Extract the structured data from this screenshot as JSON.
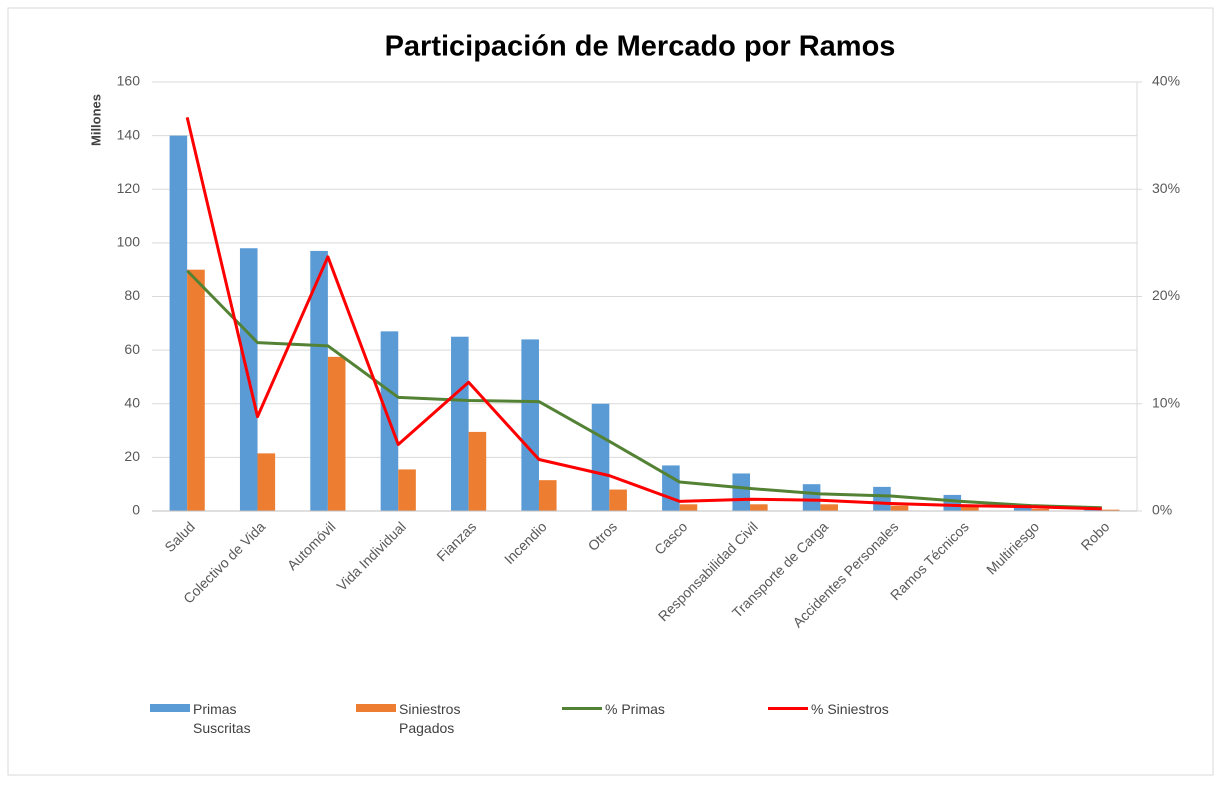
{
  "chart_data": {
    "type": "bar_line",
    "title": "Participación de Mercado por Ramos",
    "y_label": "Millones",
    "categories": [
      "Salud",
      "Colectivo de Vida",
      "Automóvil",
      "Vida Individual",
      "Fianzas",
      "Incendio",
      "Otros",
      "Casco",
      "Responsabilidad Civil",
      "Transporte de Carga",
      "Accidentes Personales",
      "Ramos Técnicos",
      "Multiriesgo",
      "Robo"
    ],
    "series": [
      {
        "name": "Primas Suscritas",
        "type": "bar",
        "color": "#5b9bd5",
        "values": [
          140,
          98,
          97,
          67,
          65,
          64,
          40,
          17,
          14,
          10,
          9,
          6,
          2,
          0.5
        ]
      },
      {
        "name": "Siniestros Pagados",
        "type": "bar",
        "color": "#ed7d31",
        "values": [
          90,
          21.5,
          57.5,
          15.5,
          29.5,
          11.5,
          8,
          2.5,
          2.5,
          2.5,
          2,
          2,
          0.8,
          0.5
        ]
      },
      {
        "name": "% Primas",
        "type": "line",
        "axis": "y2",
        "color": "#548235",
        "values": [
          22.4,
          15.7,
          15.4,
          10.6,
          10.3,
          10.2,
          6.5,
          2.7,
          2.1,
          1.6,
          1.4,
          0.9,
          0.5,
          0.3
        ]
      },
      {
        "name": "% Siniestros",
        "type": "line",
        "axis": "y2",
        "color": "#ff0000",
        "values": [
          36.7,
          8.8,
          23.7,
          6.2,
          12.0,
          4.8,
          3.3,
          0.9,
          1.1,
          1.0,
          0.7,
          0.5,
          0.4,
          0.2
        ]
      }
    ],
    "ylim": [
      0,
      160
    ],
    "yticks": [
      0,
      20,
      40,
      60,
      80,
      100,
      120,
      140,
      160
    ],
    "y2lim": [
      0,
      40
    ],
    "y2ticks": [
      {
        "value": 0,
        "label": "0%"
      },
      {
        "value": 10,
        "label": "10%"
      },
      {
        "value": 20,
        "label": "20%"
      },
      {
        "value": 30,
        "label": "30%"
      },
      {
        "value": 40,
        "label": "40%"
      }
    ],
    "grid": true,
    "legend": "bottom"
  }
}
